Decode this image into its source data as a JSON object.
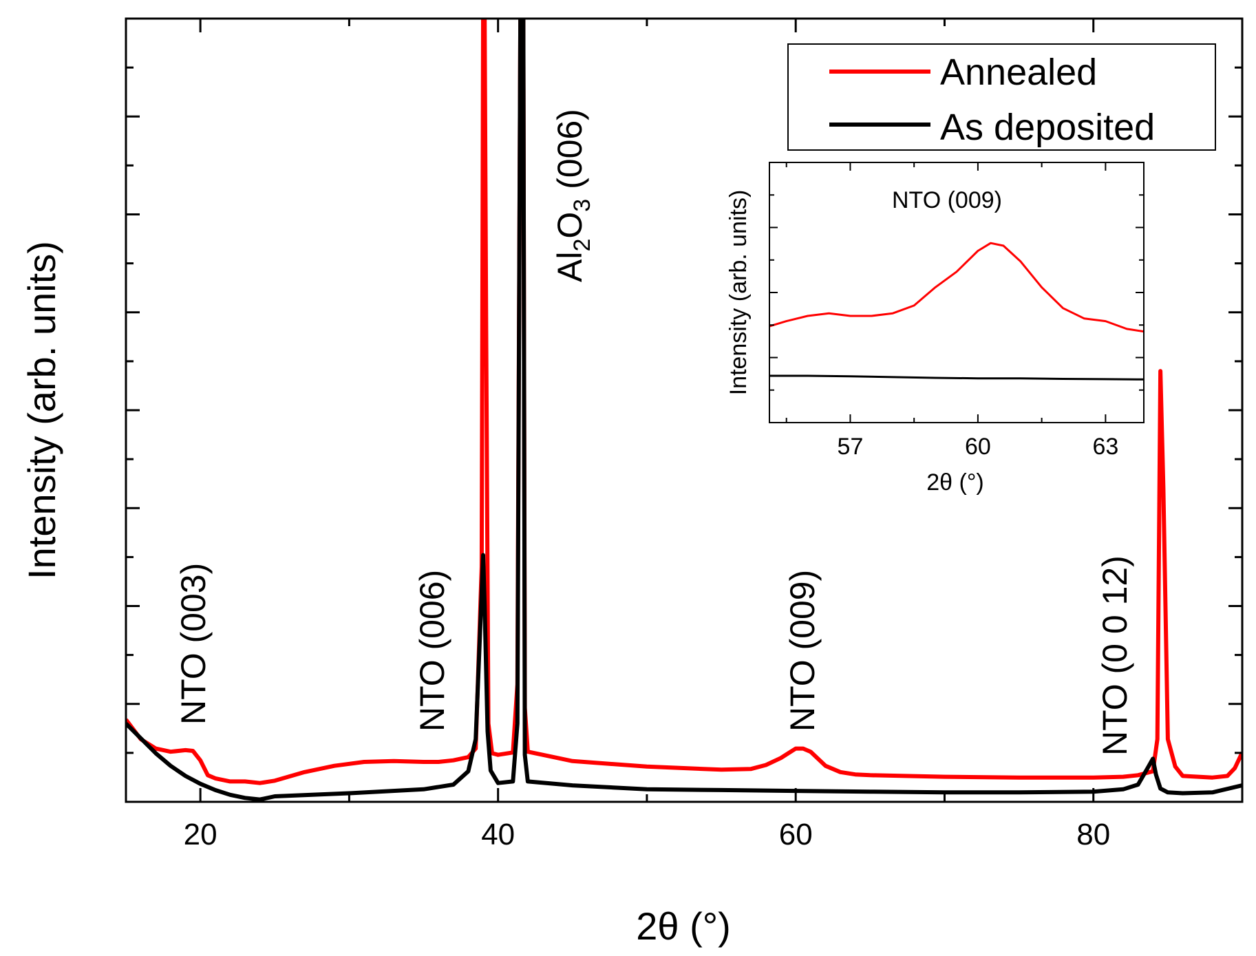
{
  "chart_data": [
    {
      "id": "main",
      "type": "line",
      "xlabel": "2θ (°)",
      "ylabel": "Intensity (arb. units)",
      "xlim": [
        15,
        90
      ],
      "ylim": [
        0,
        100
      ],
      "xticks": [
        20,
        40,
        60,
        80
      ],
      "yticks_labeled": false,
      "legend": {
        "placement": "top-right",
        "entries": [
          {
            "label": "Annealed",
            "color": "#ff0000"
          },
          {
            "label": "As deposited",
            "color": "#000000"
          }
        ]
      },
      "series": [
        {
          "name": "Annealed",
          "color": "#ff0000",
          "x": [
            15,
            16,
            17,
            18,
            19,
            19.5,
            20,
            20.5,
            21,
            22,
            23,
            24,
            25,
            27,
            29,
            31,
            33,
            35,
            36,
            37,
            38,
            38.5,
            38.9,
            39.0,
            39.1,
            39.2,
            39.35,
            39.6,
            40,
            41,
            41.3,
            41.5,
            41.7,
            41.8,
            42,
            43,
            45,
            50,
            55,
            57,
            58,
            59,
            60,
            60.5,
            61,
            62,
            63,
            64,
            65,
            70,
            75,
            80,
            82,
            83,
            84,
            84.3,
            84.5,
            84.7,
            85,
            85.5,
            86,
            88,
            89,
            89.5,
            90
          ],
          "y": [
            10.5,
            8.0,
            6.8,
            6.4,
            6.6,
            6.5,
            5.3,
            3.4,
            3.0,
            2.6,
            2.6,
            2.4,
            2.7,
            3.8,
            4.6,
            5.1,
            5.2,
            5.1,
            5.1,
            5.3,
            5.7,
            6.8,
            30,
            100,
            100,
            60,
            10.0,
            6.2,
            6.0,
            6.3,
            15,
            100,
            100,
            12.0,
            6.4,
            6.0,
            5.2,
            4.5,
            4.1,
            4.2,
            4.7,
            5.6,
            6.8,
            6.8,
            6.4,
            4.6,
            3.8,
            3.5,
            3.4,
            3.2,
            3.1,
            3.1,
            3.2,
            3.4,
            3.9,
            8.0,
            55,
            40,
            8.0,
            4.5,
            3.3,
            3.1,
            3.3,
            4.3,
            6.3
          ]
        },
        {
          "name": "As deposited",
          "color": "#000000",
          "x": [
            15,
            16,
            17,
            18,
            19,
            20,
            21,
            22,
            23,
            24,
            25,
            30,
            35,
            37,
            38,
            38.5,
            38.8,
            39.0,
            39.1,
            39.3,
            39.5,
            40,
            41,
            41.3,
            41.5,
            41.7,
            41.8,
            42,
            45,
            50,
            55,
            60,
            65,
            70,
            75,
            80,
            82,
            83,
            83.7,
            84.0,
            84.2,
            84.5,
            85,
            86,
            88,
            90
          ],
          "y": [
            10.0,
            8.1,
            6.2,
            4.6,
            3.3,
            2.3,
            1.5,
            0.9,
            0.5,
            0.3,
            0.7,
            1.1,
            1.6,
            2.2,
            3.9,
            8.0,
            22,
            31.5,
            25,
            9.0,
            4.0,
            2.4,
            2.6,
            10,
            100,
            100,
            6.0,
            2.6,
            2.1,
            1.6,
            1.5,
            1.4,
            1.3,
            1.2,
            1.2,
            1.3,
            1.6,
            2.2,
            4.5,
            5.5,
            3.5,
            1.7,
            1.2,
            1.1,
            1.2,
            2.1
          ]
        }
      ],
      "annotations": [
        {
          "text": "NTO (003)",
          "x": 19.5,
          "orientation": "vertical"
        },
        {
          "text": "NTO (006)",
          "x": 37.5,
          "orientation": "vertical"
        },
        {
          "text": "NTO (009)",
          "x": 60.3,
          "orientation": "vertical"
        },
        {
          "text": "NTO (0 0 12)",
          "x": 82.2,
          "orientation": "vertical"
        },
        {
          "text_parts": [
            "Al",
            "2",
            "O",
            "3",
            " (006)"
          ],
          "x": 44.2,
          "orientation": "vertical"
        }
      ]
    },
    {
      "id": "inset",
      "type": "line",
      "xlabel": "2θ (°)",
      "ylabel": "Intensity (arb. units)",
      "title": "NTO (009)",
      "xlim": [
        55.1,
        63.9
      ],
      "ylim": [
        0,
        100
      ],
      "xticks": [
        57,
        60,
        63
      ],
      "series": [
        {
          "name": "Annealed",
          "color": "#ff0000",
          "x": [
            55.1,
            55.5,
            56,
            56.5,
            57,
            57.5,
            58,
            58.5,
            59,
            59.5,
            60,
            60.3,
            60.6,
            61,
            61.5,
            62,
            62.5,
            63,
            63.5,
            63.9
          ],
          "y": [
            37,
            39,
            41,
            42,
            41,
            41,
            42,
            45,
            52,
            58,
            66,
            69,
            68,
            62,
            52,
            44,
            40,
            39,
            36,
            35
          ]
        },
        {
          "name": "As deposited",
          "color": "#000000",
          "x": [
            55.1,
            56,
            57,
            58,
            59,
            60,
            61,
            62,
            63,
            63.9
          ],
          "y": [
            18,
            18,
            17.8,
            17.5,
            17.2,
            17.0,
            17.0,
            16.8,
            16.7,
            16.6
          ]
        }
      ]
    }
  ]
}
